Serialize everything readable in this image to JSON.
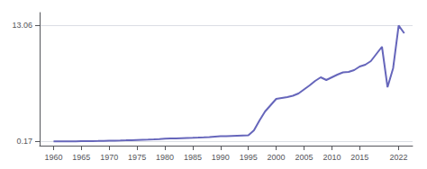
{
  "chart_data": {
    "type": "line",
    "x": [
      1960,
      1961,
      1962,
      1963,
      1964,
      1965,
      1966,
      1967,
      1968,
      1969,
      1970,
      1971,
      1972,
      1973,
      1974,
      1975,
      1976,
      1977,
      1978,
      1979,
      1980,
      1981,
      1982,
      1983,
      1984,
      1985,
      1986,
      1987,
      1988,
      1989,
      1990,
      1991,
      1992,
      1993,
      1994,
      1995,
      1996,
      1997,
      1998,
      1999,
      2000,
      2001,
      2002,
      2003,
      2004,
      2005,
      2006,
      2007,
      2008,
      2009,
      2010,
      2011,
      2012,
      2013,
      2014,
      2015,
      2016,
      2017,
      2018,
      2019,
      2020,
      2021,
      2022,
      2023
    ],
    "values": [
      0.17,
      0.172,
      0.175,
      0.18,
      0.185,
      0.192,
      0.2,
      0.21,
      0.22,
      0.232,
      0.245,
      0.258,
      0.272,
      0.29,
      0.31,
      0.33,
      0.35,
      0.372,
      0.4,
      0.43,
      0.465,
      0.49,
      0.51,
      0.53,
      0.55,
      0.57,
      0.595,
      0.625,
      0.66,
      0.7,
      0.74,
      0.76,
      0.78,
      0.8,
      0.82,
      0.84,
      1.4,
      2.5,
      3.5,
      4.2,
      4.9,
      5.0,
      5.1,
      5.25,
      5.5,
      5.95,
      6.4,
      6.9,
      7.3,
      7.0,
      7.3,
      7.6,
      7.85,
      7.9,
      8.1,
      8.5,
      8.7,
      9.1,
      9.9,
      10.7,
      6.2,
      8.3,
      13.06,
      12.2
    ],
    "color": "#6666bb",
    "xlim": [
      1957.5,
      2024.5
    ],
    "ylim": [
      -0.3,
      14.5
    ],
    "xticks": [
      1960,
      1965,
      1970,
      1975,
      1980,
      1985,
      1990,
      1995,
      2000,
      2005,
      2010,
      2015,
      2022
    ],
    "yticks": [
      0.17,
      13.06
    ],
    "grid": true
  }
}
